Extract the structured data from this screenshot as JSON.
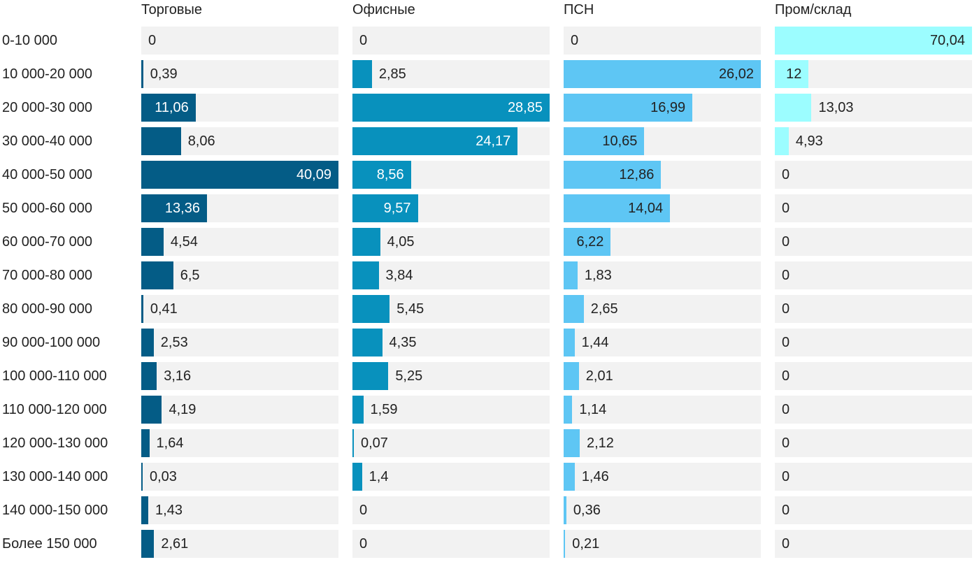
{
  "chart_data": {
    "type": "bar",
    "orientation": "horizontal",
    "layout": "small-multiples",
    "scale": "each panel scaled to its own maximum",
    "categories": [
      "0-10 000",
      "10 000-20 000",
      "20 000-30 000",
      "30 000-40 000",
      "40 000-50 000",
      "50 000-60 000",
      "60 000-70 000",
      "70 000-80 000",
      "80 000-90 000",
      "90 000-100 000",
      "100 000-110 000",
      "110 000-120 000",
      "120 000-130 000",
      "130 000-140 000",
      "140 000-150 000",
      "Более 150 000"
    ],
    "series": [
      {
        "name": "Торговые",
        "color": "#045c86",
        "label_inside_color": "#ffffff",
        "values": [
          0,
          0.39,
          11.06,
          8.06,
          40.09,
          13.36,
          4.54,
          6.5,
          0.41,
          2.53,
          3.16,
          4.19,
          1.64,
          0.03,
          1.43,
          2.61
        ],
        "labels": [
          "0",
          "0,39",
          "11,06",
          "8,06",
          "40,09",
          "13,36",
          "4,54",
          "6,5",
          "0,41",
          "2,53",
          "3,16",
          "4,19",
          "1,64",
          "0,03",
          "1,43",
          "2,61"
        ]
      },
      {
        "name": "Офисные",
        "color": "#0891bd",
        "label_inside_color": "#ffffff",
        "values": [
          0,
          2.85,
          28.85,
          24.17,
          8.56,
          9.57,
          4.05,
          3.84,
          5.45,
          4.35,
          5.25,
          1.59,
          0.07,
          1.4,
          0,
          0
        ],
        "labels": [
          "0",
          "2,85",
          "28,85",
          "24,17",
          "8,56",
          "9,57",
          "4,05",
          "3,84",
          "5,45",
          "4,35",
          "5,25",
          "1,59",
          "0,07",
          "1,4",
          "0",
          "0"
        ]
      },
      {
        "name": "ПСН",
        "color": "#5ec6f4",
        "label_inside_color": "#222222",
        "values": [
          0,
          26.02,
          16.99,
          10.65,
          12.86,
          14.04,
          6.22,
          1.83,
          2.65,
          1.44,
          2.01,
          1.14,
          2.12,
          1.46,
          0.36,
          0.21
        ],
        "labels": [
          "0",
          "26,02",
          "16,99",
          "10,65",
          "12,86",
          "14,04",
          "6,22",
          "1,83",
          "2,65",
          "1,44",
          "2,01",
          "1,14",
          "2,12",
          "1,46",
          "0,36",
          "0,21"
        ]
      },
      {
        "name": "Пром/склад",
        "color": "#9cfdff",
        "label_inside_color": "#222222",
        "values": [
          70.04,
          12,
          13.03,
          4.93,
          0,
          0,
          0,
          0,
          0,
          0,
          0,
          0,
          0,
          0,
          0,
          0
        ],
        "labels": [
          "70,04",
          "12",
          "13,03",
          "4,93",
          "0",
          "0",
          "0",
          "0",
          "0",
          "0",
          "0",
          "0",
          "0",
          "0",
          "0",
          "0"
        ]
      }
    ],
    "title": "",
    "grid": false,
    "legend": "none"
  }
}
